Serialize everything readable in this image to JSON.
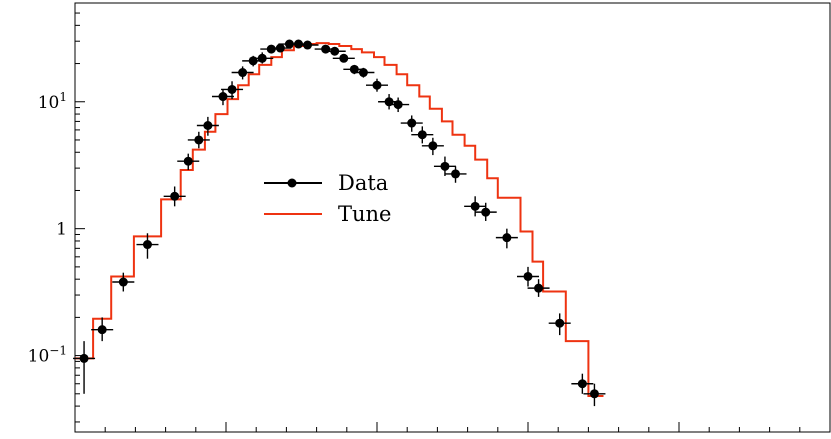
{
  "chart_data": {
    "type": "scatter",
    "title": "",
    "xlabel": "",
    "ylabel": "",
    "xlim": [
      0,
      50
    ],
    "ylim": [
      0.025,
      60
    ],
    "yscale": "log",
    "grid": false,
    "legend_position": "center-left",
    "y_ticks": [
      {
        "value": 0.1,
        "base": "10",
        "exp": "−1"
      },
      {
        "value": 1,
        "base": "1",
        "exp": ""
      },
      {
        "value": 10,
        "base": "10",
        "exp": "1"
      }
    ],
    "x_major_ticks": [
      0,
      10,
      20,
      30,
      40,
      50
    ],
    "x_minor_ticks": [
      2,
      4,
      6,
      8,
      12,
      14,
      16,
      18,
      22,
      24,
      26,
      28,
      32,
      34,
      36,
      38,
      42,
      44,
      46,
      48
    ],
    "series": [
      {
        "name": "Data",
        "color": "#000000",
        "kind": "points",
        "points": [
          {
            "x": 0.6,
            "y": 0.095,
            "lo": 0.05,
            "hi": 0.13
          },
          {
            "x": 1.8,
            "y": 0.16,
            "lo": 0.13,
            "hi": 0.2
          },
          {
            "x": 3.2,
            "y": 0.38,
            "lo": 0.32,
            "hi": 0.45
          },
          {
            "x": 4.8,
            "y": 0.75,
            "lo": 0.58,
            "hi": 0.92
          },
          {
            "x": 6.6,
            "y": 1.8,
            "lo": 1.5,
            "hi": 2.15
          },
          {
            "x": 7.5,
            "y": 3.4,
            "lo": 2.9,
            "hi": 3.9
          },
          {
            "x": 8.2,
            "y": 5.0,
            "lo": 4.3,
            "hi": 5.8
          },
          {
            "x": 8.8,
            "y": 6.5,
            "lo": 5.4,
            "hi": 7.6
          },
          {
            "x": 9.8,
            "y": 11.0,
            "lo": 9.4,
            "hi": 12.6
          },
          {
            "x": 10.4,
            "y": 12.5,
            "lo": 10.5,
            "hi": 14.5
          },
          {
            "x": 11.1,
            "y": 17.0,
            "lo": 15.0,
            "hi": 19.0
          },
          {
            "x": 11.8,
            "y": 21.0,
            "lo": 19.0,
            "hi": 23.0
          },
          {
            "x": 12.4,
            "y": 22.0,
            "lo": 20.0,
            "hi": 24.5
          },
          {
            "x": 13.0,
            "y": 26.0,
            "lo": 24.5,
            "hi": 27.5
          },
          {
            "x": 13.6,
            "y": 26.5,
            "lo": 25.0,
            "hi": 28.0
          },
          {
            "x": 14.2,
            "y": 28.5,
            "lo": 27.0,
            "hi": 30.0
          },
          {
            "x": 14.8,
            "y": 28.5,
            "lo": 27.0,
            "hi": 30.0
          },
          {
            "x": 15.4,
            "y": 28.0,
            "lo": 26.5,
            "hi": 29.5
          },
          {
            "x": 16.6,
            "y": 26.0,
            "lo": 24.5,
            "hi": 27.5
          },
          {
            "x": 17.2,
            "y": 25.0,
            "lo": 23.5,
            "hi": 26.5
          },
          {
            "x": 17.8,
            "y": 22.0,
            "lo": 20.5,
            "hi": 23.5
          },
          {
            "x": 18.5,
            "y": 18.0,
            "lo": 16.5,
            "hi": 19.5
          },
          {
            "x": 19.1,
            "y": 17.0,
            "lo": 15.5,
            "hi": 18.5
          },
          {
            "x": 20.0,
            "y": 13.5,
            "lo": 12.0,
            "hi": 15.2
          },
          {
            "x": 20.8,
            "y": 10.0,
            "lo": 8.7,
            "hi": 11.5
          },
          {
            "x": 21.4,
            "y": 9.5,
            "lo": 8.3,
            "hi": 10.8
          },
          {
            "x": 22.3,
            "y": 6.8,
            "lo": 5.8,
            "hi": 7.8
          },
          {
            "x": 23.0,
            "y": 5.5,
            "lo": 4.7,
            "hi": 6.4
          },
          {
            "x": 23.7,
            "y": 4.5,
            "lo": 3.8,
            "hi": 5.2
          },
          {
            "x": 24.5,
            "y": 3.1,
            "lo": 2.6,
            "hi": 3.7
          },
          {
            "x": 25.2,
            "y": 2.7,
            "lo": 2.3,
            "hi": 3.1
          },
          {
            "x": 26.5,
            "y": 1.5,
            "lo": 1.25,
            "hi": 1.8
          },
          {
            "x": 27.2,
            "y": 1.35,
            "lo": 1.15,
            "hi": 1.6
          },
          {
            "x": 28.6,
            "y": 0.85,
            "lo": 0.7,
            "hi": 1.0
          },
          {
            "x": 30.0,
            "y": 0.42,
            "lo": 0.35,
            "hi": 0.5
          },
          {
            "x": 30.7,
            "y": 0.34,
            "lo": 0.29,
            "hi": 0.4
          },
          {
            "x": 32.1,
            "y": 0.18,
            "lo": 0.145,
            "hi": 0.215
          },
          {
            "x": 33.6,
            "y": 0.06,
            "lo": 0.05,
            "hi": 0.072
          },
          {
            "x": 34.4,
            "y": 0.05,
            "lo": 0.04,
            "hi": 0.06
          }
        ]
      },
      {
        "name": "Tune",
        "color": "#ee3311",
        "kind": "step",
        "edges": [
          0.0,
          1.2,
          2.4,
          3.9,
          5.7,
          7.0,
          7.8,
          8.6,
          9.3,
          10.1,
          10.8,
          11.5,
          12.2,
          13.0,
          13.7,
          14.5,
          15.3,
          16.0,
          16.8,
          17.5,
          18.3,
          19.0,
          19.8,
          20.5,
          21.3,
          22.0,
          22.8,
          23.5,
          24.3,
          25.0,
          25.8,
          26.5,
          27.3,
          28.0,
          29.5,
          30.3,
          31.0,
          32.5,
          34.0,
          35.0
        ],
        "values": [
          0.095,
          0.195,
          0.42,
          0.87,
          1.7,
          2.9,
          4.2,
          5.8,
          8.0,
          10.5,
          13.5,
          16.5,
          19.5,
          22.5,
          25.5,
          27.5,
          28.5,
          29.0,
          28.5,
          27.5,
          26.0,
          24.5,
          22.5,
          19.5,
          16.5,
          13.5,
          11.0,
          8.8,
          7.0,
          5.5,
          4.5,
          3.5,
          2.5,
          1.75,
          0.95,
          0.55,
          0.32,
          0.13,
          0.048
        ]
      }
    ]
  }
}
